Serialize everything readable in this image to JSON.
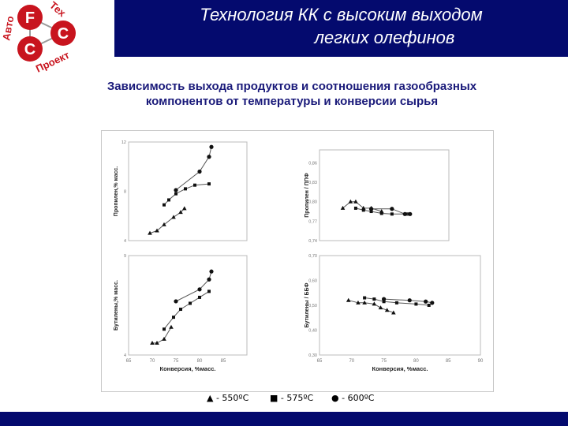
{
  "logo": {
    "big_letters": [
      "F",
      "C",
      "C"
    ],
    "side_text": "Авто",
    "top_text": "Тех",
    "bottom_text": "Проект"
  },
  "header": {
    "title_line1": "Технология КК с высоким выходом",
    "title_line2": "легких олефинов"
  },
  "subtitle": {
    "line1": "Зависимость выхода продуктов и соотношения газообразных",
    "line2": "компонентов от температуры и конверсии сырья"
  },
  "legend": {
    "items": [
      {
        "marker": "▲",
        "label": " - 550ºC"
      },
      {
        "marker": "■",
        "label": " - 575ºC"
      },
      {
        "marker": "●",
        "label": " - 600ºC"
      }
    ]
  },
  "colors": {
    "header": "#040a6e",
    "accent_red": "#c8141e"
  },
  "chart_data": [
    {
      "type": "scatter",
      "ylabel": "Пропилен,% масс.",
      "xlabel": "",
      "xlim": [
        65,
        90
      ],
      "ylim": [
        4,
        12
      ],
      "yticks": [
        "4",
        "8",
        "12"
      ],
      "series": [
        {
          "marker": "triangle",
          "x": [
            69.5,
            71,
            72.5,
            74.5,
            76,
            76.8
          ],
          "y": [
            4.6,
            4.8,
            5.3,
            5.9,
            6.3,
            6.6
          ]
        },
        {
          "marker": "square",
          "x": [
            72.5,
            73.5,
            75,
            77,
            79,
            82
          ],
          "y": [
            6.9,
            7.3,
            7.8,
            8.2,
            8.5,
            8.6
          ]
        },
        {
          "marker": "circle",
          "x": [
            75,
            80,
            82,
            82.5
          ],
          "y": [
            8.1,
            9.6,
            10.8,
            11.6
          ]
        }
      ]
    },
    {
      "type": "scatter",
      "ylabel": "Пропилен / ППФ",
      "xlabel": "",
      "xlim": [
        65,
        90
      ],
      "ylim": [
        0.74,
        0.88
      ],
      "yticks": [
        "0,74",
        "0,77",
        "0,80",
        "0,83",
        "0,86"
      ],
      "series": [
        {
          "marker": "triangle",
          "x": [
            69.5,
            71,
            72,
            73.5,
            75,
            77
          ],
          "y": [
            0.79,
            0.8,
            0.8,
            0.79,
            0.79,
            0.785
          ]
        },
        {
          "marker": "square",
          "x": [
            72,
            73.5,
            75,
            77,
            79,
            82
          ],
          "y": [
            0.79,
            0.787,
            0.785,
            0.782,
            0.781,
            0.781
          ]
        },
        {
          "marker": "circle",
          "x": [
            75,
            79,
            81.5,
            82.5
          ],
          "y": [
            0.789,
            0.789,
            0.781,
            0.781
          ]
        }
      ]
    },
    {
      "type": "scatter",
      "ylabel": "Бутилены,% масс.",
      "xlabel": "Конверсия, %масс.",
      "xlim": [
        65,
        90
      ],
      "ylim": [
        4,
        9
      ],
      "xticks": [
        "65",
        "70",
        "75",
        "80",
        "85"
      ],
      "yticks": [
        "4",
        "9"
      ],
      "series": [
        {
          "marker": "triangle",
          "x": [
            70,
            71,
            72.5,
            74
          ],
          "y": [
            4.6,
            4.6,
            4.8,
            5.4
          ]
        },
        {
          "marker": "square",
          "x": [
            72.5,
            74.5,
            76,
            78,
            80,
            82
          ],
          "y": [
            5.3,
            5.9,
            6.3,
            6.6,
            6.9,
            7.2
          ]
        },
        {
          "marker": "circle",
          "x": [
            75,
            80,
            82,
            82.5
          ],
          "y": [
            6.7,
            7.3,
            7.8,
            8.2
          ]
        }
      ]
    },
    {
      "type": "scatter",
      "ylabel": "Бутилены / ББФ",
      "xlabel": "Конверсия, %масс.",
      "xlim": [
        65,
        90
      ],
      "ylim": [
        0.3,
        0.7
      ],
      "xticks": [
        "65",
        "70",
        "75",
        "80",
        "85",
        "90"
      ],
      "yticks": [
        "0,30",
        "0,40",
        "0,50",
        "0,60",
        "0,70"
      ],
      "series": [
        {
          "marker": "triangle",
          "x": [
            69.5,
            71,
            72,
            73.5,
            74.5,
            75.5,
            76.5
          ],
          "y": [
            0.52,
            0.51,
            0.51,
            0.505,
            0.49,
            0.48,
            0.47
          ]
        },
        {
          "marker": "square",
          "x": [
            72,
            73.5,
            75,
            77,
            80,
            82
          ],
          "y": [
            0.53,
            0.525,
            0.515,
            0.51,
            0.505,
            0.5
          ]
        },
        {
          "marker": "circle",
          "x": [
            75,
            79,
            81.5,
            82.5
          ],
          "y": [
            0.525,
            0.52,
            0.515,
            0.51
          ]
        }
      ]
    }
  ]
}
